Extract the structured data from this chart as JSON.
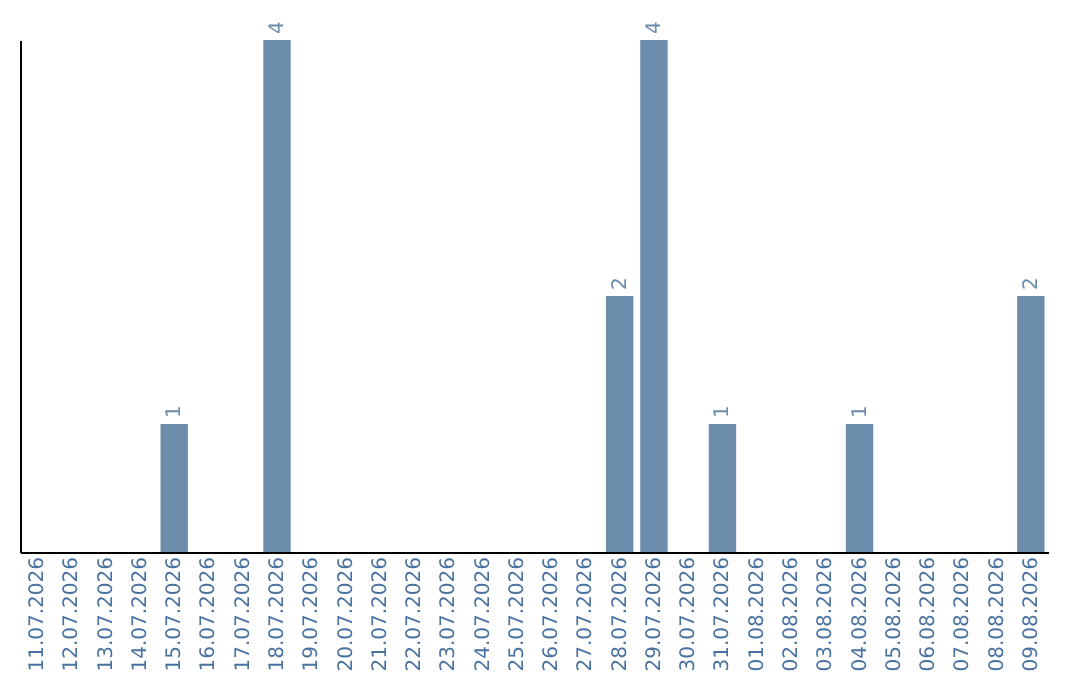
{
  "chart_data": {
    "type": "bar",
    "categories": [
      "11.07.2026",
      "12.07.2026",
      "13.07.2026",
      "14.07.2026",
      "15.07.2026",
      "16.07.2026",
      "17.07.2026",
      "18.07.2026",
      "19.07.2026",
      "20.07.2026",
      "21.07.2026",
      "22.07.2026",
      "23.07.2026",
      "24.07.2026",
      "25.07.2026",
      "26.07.2026",
      "27.07.2026",
      "28.07.2026",
      "29.07.2026",
      "30.07.2026",
      "31.07.2026",
      "01.08.2026",
      "02.08.2026",
      "03.08.2026",
      "04.08.2026",
      "05.08.2026",
      "06.08.2026",
      "07.08.2026",
      "08.08.2026",
      "09.08.2026"
    ],
    "values": [
      0,
      0,
      0,
      0,
      1,
      0,
      0,
      4,
      0,
      0,
      0,
      0,
      0,
      0,
      0,
      0,
      0,
      2,
      4,
      0,
      1,
      0,
      0,
      0,
      1,
      0,
      0,
      0,
      0,
      2
    ],
    "value_labels": [
      null,
      null,
      null,
      null,
      "1",
      null,
      null,
      "4",
      null,
      null,
      null,
      null,
      null,
      null,
      null,
      null,
      null,
      "2",
      "4",
      null,
      "1",
      null,
      null,
      null,
      "1",
      null,
      null,
      null,
      null,
      "2"
    ],
    "color": "#6b8cab",
    "tick_labels": "x"
  }
}
